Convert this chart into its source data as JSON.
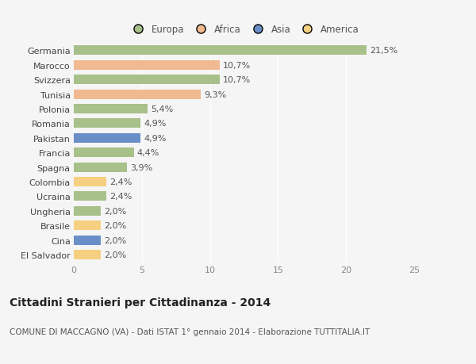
{
  "countries": [
    "Germania",
    "Marocco",
    "Svizzera",
    "Tunisia",
    "Polonia",
    "Romania",
    "Pakistan",
    "Francia",
    "Spagna",
    "Colombia",
    "Ucraina",
    "Ungheria",
    "Brasile",
    "Cina",
    "El Salvador"
  ],
  "values": [
    21.5,
    10.7,
    10.7,
    9.3,
    5.4,
    4.9,
    4.9,
    4.4,
    3.9,
    2.4,
    2.4,
    2.0,
    2.0,
    2.0,
    2.0
  ],
  "labels": [
    "21,5%",
    "10,7%",
    "10,7%",
    "9,3%",
    "5,4%",
    "4,9%",
    "4,9%",
    "4,4%",
    "3,9%",
    "2,4%",
    "2,4%",
    "2,0%",
    "2,0%",
    "2,0%",
    "2,0%"
  ],
  "continents": [
    "Europa",
    "Africa",
    "Europa",
    "Africa",
    "Europa",
    "Europa",
    "Asia",
    "Europa",
    "Europa",
    "America",
    "Europa",
    "Europa",
    "America",
    "Asia",
    "America"
  ],
  "colors": {
    "Europa": "#a8c08a",
    "Africa": "#f0b990",
    "Asia": "#6a8fc8",
    "America": "#f5d080"
  },
  "legend_order": [
    "Europa",
    "Africa",
    "Asia",
    "America"
  ],
  "xlim": [
    0,
    25
  ],
  "xticks": [
    0,
    5,
    10,
    15,
    20,
    25
  ],
  "title": "Cittadini Stranieri per Cittadinanza - 2014",
  "subtitle": "COMUNE DI MACCAGNO (VA) - Dati ISTAT 1° gennaio 2014 - Elaborazione TUTTITALIA.IT",
  "bg_color": "#f5f5f5",
  "bar_height": 0.65,
  "label_fontsize": 8,
  "ytick_fontsize": 8,
  "xtick_fontsize": 8,
  "title_fontsize": 10,
  "subtitle_fontsize": 7.5
}
